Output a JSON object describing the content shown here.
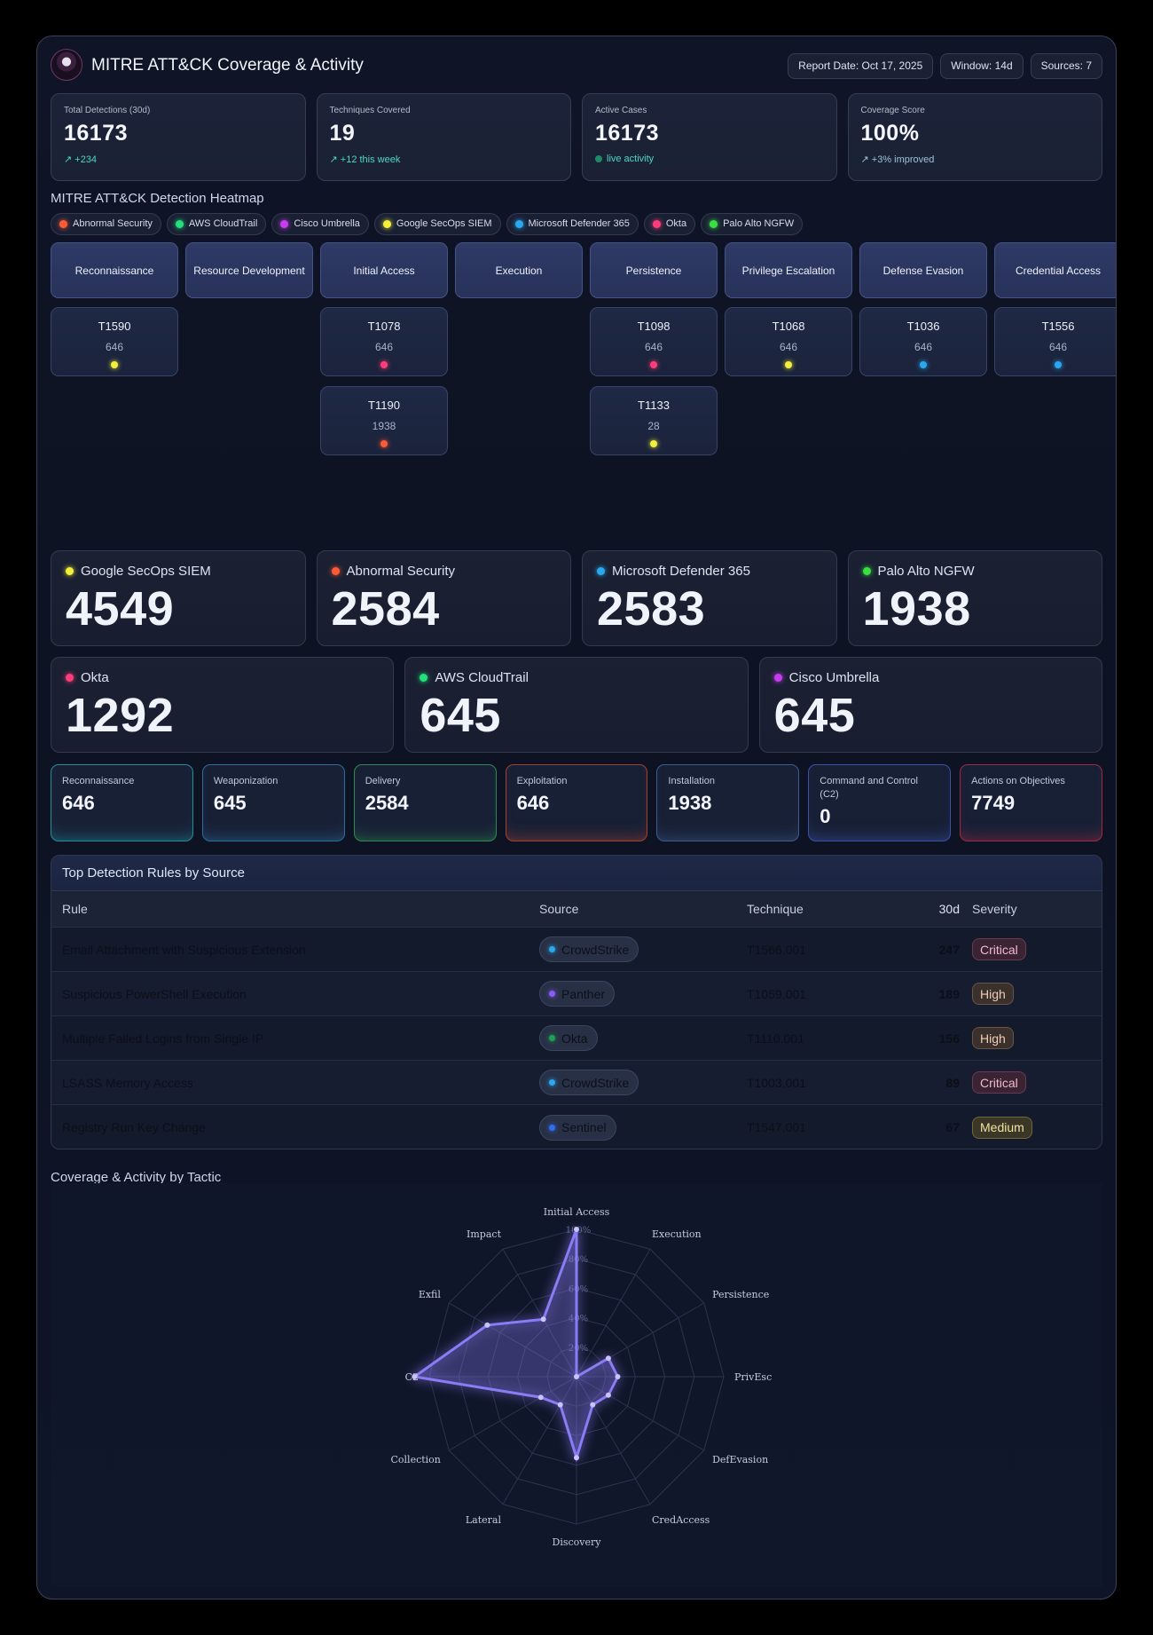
{
  "header": {
    "title": "MITRE ATT&CK Coverage & Activity",
    "report_date": "Report Date: Oct 17, 2025",
    "window": "Window: 14d",
    "sources": "Sources: 7"
  },
  "kpis": [
    {
      "label": "Total Detections (30d)",
      "value": "16173",
      "sub": "↗ +234"
    },
    {
      "label": "Techniques Covered",
      "value": "19",
      "sub": "↗ +12 this week"
    },
    {
      "label": "Active Cases",
      "value": "16173",
      "sub": "live activity"
    },
    {
      "label": "Coverage Score",
      "value": "100%",
      "sub": "↗ +3% improved"
    }
  ],
  "heatmap": {
    "title": "MITRE ATT&CK Detection Heatmap",
    "legend": [
      {
        "name": "Abnormal Security",
        "color": "#ff5a36"
      },
      {
        "name": "AWS CloudTrail",
        "color": "#22e07a"
      },
      {
        "name": "Cisco Umbrella",
        "color": "#c83cf0"
      },
      {
        "name": "Google SecOps SIEM",
        "color": "#f4f03a"
      },
      {
        "name": "Microsoft Defender 365",
        "color": "#29a8f0"
      },
      {
        "name": "Okta",
        "color": "#ff3c7a"
      },
      {
        "name": "Palo Alto NGFW",
        "color": "#3ae040"
      }
    ],
    "tactics": [
      "Reconnaissance",
      "Resource Development",
      "Initial Access",
      "Execution",
      "Persistence",
      "Privilege Escalation",
      "Defense Evasion",
      "Credential Access"
    ],
    "techniques": [
      {
        "id": "T1590",
        "count": "646",
        "color": "#f4f03a"
      },
      {
        "id": "T1078",
        "count": "646",
        "color": "#ff3c7a"
      },
      {
        "id": "T1190",
        "count": "1938",
        "color": "#ff5a36"
      },
      {
        "id": "T1098",
        "count": "646",
        "color": "#ff3c7a"
      },
      {
        "id": "T1133",
        "count": "28",
        "color": "#f4f03a"
      },
      {
        "id": "T1068",
        "count": "646",
        "color": "#f4f03a"
      },
      {
        "id": "T1036",
        "count": "646",
        "color": "#29a8f0"
      },
      {
        "id": "T1556",
        "count": "646",
        "color": "#29a8f0"
      }
    ]
  },
  "sources": [
    {
      "name": "Google SecOps SIEM",
      "value": "4549",
      "color": "#f4f03a"
    },
    {
      "name": "Abnormal Security",
      "value": "2584",
      "color": "#ff5a36"
    },
    {
      "name": "Microsoft Defender 365",
      "value": "2583",
      "color": "#29a8f0"
    },
    {
      "name": "Palo Alto NGFW",
      "value": "1938",
      "color": "#3ae040"
    },
    {
      "name": "Okta",
      "value": "1292",
      "color": "#ff3c7a"
    },
    {
      "name": "AWS CloudTrail",
      "value": "645",
      "color": "#22e07a"
    },
    {
      "name": "Cisco Umbrella",
      "value": "645",
      "color": "#c83cf0"
    }
  ],
  "kill_chain": [
    {
      "label": "Reconnaissance",
      "value": "646",
      "accent": "#1f8f9a"
    },
    {
      "label": "Weaponization",
      "value": "645",
      "accent": "#2b6f9a"
    },
    {
      "label": "Delivery",
      "value": "2584",
      "accent": "#2e8a4e"
    },
    {
      "label": "Exploitation",
      "value": "646",
      "accent": "#a4402e"
    },
    {
      "label": "Installation",
      "value": "1938",
      "accent": "#3e5a8f"
    },
    {
      "label": "Command and Control (C2)",
      "value": "0",
      "accent": "#3b52a8"
    },
    {
      "label": "Actions on Objectives",
      "value": "7749",
      "accent": "#a02a44"
    }
  ],
  "rules_table": {
    "title": "Top Detection Rules by Source",
    "headers": {
      "rule": "Rule",
      "source": "Source",
      "technique": "Technique",
      "count": "30d",
      "severity": "Severity"
    },
    "rows": [
      {
        "rule": "Email Attachment with Suspicious Extension",
        "source": "CrowdStrike",
        "source_color": "#29a8f0",
        "technique": "T1566.001",
        "count": "247",
        "severity": "Critical"
      },
      {
        "rule": "Suspicious PowerShell Execution",
        "source": "Panther",
        "source_color": "#8a5cf5",
        "technique": "T1059.001",
        "count": "189",
        "severity": "High"
      },
      {
        "rule": "Multiple Failed Logins from Single IP",
        "source": "Okta",
        "source_color": "#1fa052",
        "technique": "T1110.001",
        "count": "156",
        "severity": "High"
      },
      {
        "rule": "LSASS Memory Access",
        "source": "CrowdStrike",
        "source_color": "#29a8f0",
        "technique": "T1003.001",
        "count": "89",
        "severity": "Critical"
      },
      {
        "rule": "Registry Run Key Change",
        "source": "Sentinel",
        "source_color": "#2f6ef0",
        "technique": "T1547.001",
        "count": "67",
        "severity": "Medium"
      }
    ]
  },
  "radar": {
    "title": "Coverage & Activity by Tactic",
    "chart_data": {
      "type": "radar",
      "categories": [
        "Initial Access",
        "Execution",
        "Persistence",
        "PrivEsc",
        "DefEvasion",
        "CredAccess",
        "Discovery",
        "Lateral",
        "Collection",
        "C2",
        "Exfil",
        "Impact"
      ],
      "values": [
        100,
        0,
        25,
        28,
        25,
        22,
        55,
        22,
        28,
        110,
        70,
        45
      ],
      "tick_labels": [
        "20%",
        "40%",
        "60%",
        "80%",
        "100%"
      ],
      "rmax": 100,
      "color": "#8b7cf6"
    }
  }
}
